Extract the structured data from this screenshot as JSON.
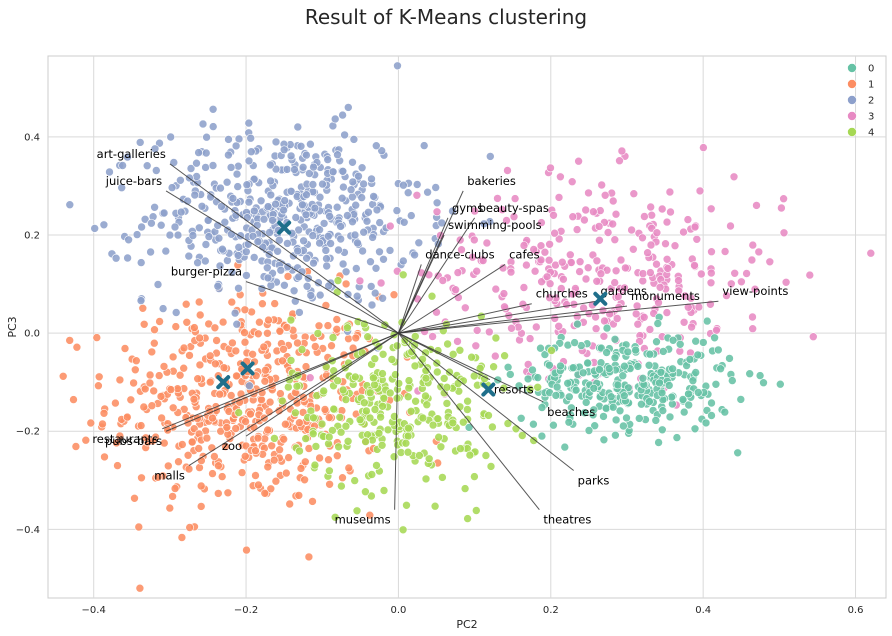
{
  "chart_data": {
    "type": "scatter",
    "title": "Result of K-Means clustering",
    "xlabel": "PC2",
    "ylabel": "PC3",
    "xlim": [
      -0.46,
      0.64
    ],
    "ylim": [
      -0.54,
      0.565
    ],
    "xticks": [
      -0.4,
      -0.2,
      0.0,
      0.2,
      0.4,
      0.6
    ],
    "xtick_labels": [
      "−0.4",
      "−0.2",
      "0.0",
      "0.2",
      "0.4",
      "0.6"
    ],
    "yticks": [
      -0.4,
      -0.2,
      0.0,
      0.2,
      0.4
    ],
    "ytick_labels": [
      "−0.4",
      "−0.2",
      "0.0",
      "0.2",
      "0.4"
    ],
    "grid": true,
    "legend_position": "top-right",
    "series": [
      {
        "name": "0",
        "color": "#66c2a5",
        "center": [
          0.3,
          -0.1
        ],
        "spread": [
          0.07,
          0.05
        ],
        "count": 320
      },
      {
        "name": "1",
        "color": "#fc8d62",
        "center": [
          -0.2,
          -0.14
        ],
        "spread": [
          0.09,
          0.11
        ],
        "count": 520
      },
      {
        "name": "2",
        "color": "#8da0cb",
        "center": [
          -0.15,
          0.24
        ],
        "spread": [
          0.09,
          0.09
        ],
        "count": 520
      },
      {
        "name": "3",
        "color": "#e78ac3",
        "center": [
          0.27,
          0.12
        ],
        "spread": [
          0.12,
          0.1
        ],
        "count": 340
      },
      {
        "name": "4",
        "color": "#a6d854",
        "center": [
          0.0,
          -0.14
        ],
        "spread": [
          0.07,
          0.09
        ],
        "count": 320
      }
    ],
    "centroids": [
      {
        "x": -0.15,
        "y": 0.215
      },
      {
        "x": -0.23,
        "y": -0.1
      },
      {
        "x": -0.198,
        "y": -0.072
      },
      {
        "x": 0.118,
        "y": -0.115
      },
      {
        "x": 0.265,
        "y": 0.07
      }
    ],
    "centroid_color": "#1f6f8b",
    "loadings": [
      {
        "label": "art-galleries",
        "x": -0.3,
        "y": 0.345
      },
      {
        "label": "juice-bars",
        "x": -0.305,
        "y": 0.29
      },
      {
        "label": "bakeries",
        "x": 0.085,
        "y": 0.29
      },
      {
        "label": "gyms",
        "x": 0.065,
        "y": 0.235
      },
      {
        "label": "beauty-spas",
        "x": 0.1,
        "y": 0.235
      },
      {
        "label": "swimming-pools",
        "x": 0.06,
        "y": 0.2
      },
      {
        "label": "cafes",
        "x": 0.14,
        "y": 0.14
      },
      {
        "label": "dance-clubs",
        "x": 0.03,
        "y": 0.14
      },
      {
        "label": "burger-pizza",
        "x": -0.2,
        "y": 0.105
      },
      {
        "label": "churches",
        "x": 0.175,
        "y": 0.06
      },
      {
        "label": "gardens",
        "x": 0.26,
        "y": 0.065
      },
      {
        "label": "monuments",
        "x": 0.3,
        "y": 0.055
      },
      {
        "label": "view-points",
        "x": 0.42,
        "y": 0.065
      },
      {
        "label": "resorts",
        "x": 0.12,
        "y": -0.095
      },
      {
        "label": "beaches",
        "x": 0.19,
        "y": -0.14
      },
      {
        "label": "parks",
        "x": 0.23,
        "y": -0.28
      },
      {
        "label": "theatres",
        "x": 0.185,
        "y": -0.36
      },
      {
        "label": "museums",
        "x": -0.005,
        "y": -0.36
      },
      {
        "label": "malls",
        "x": -0.275,
        "y": -0.27
      },
      {
        "label": "zoo",
        "x": -0.2,
        "y": -0.21
      },
      {
        "label": "pubs-bars",
        "x": -0.305,
        "y": -0.2
      },
      {
        "label": "restaurants",
        "x": -0.31,
        "y": -0.195
      }
    ]
  }
}
